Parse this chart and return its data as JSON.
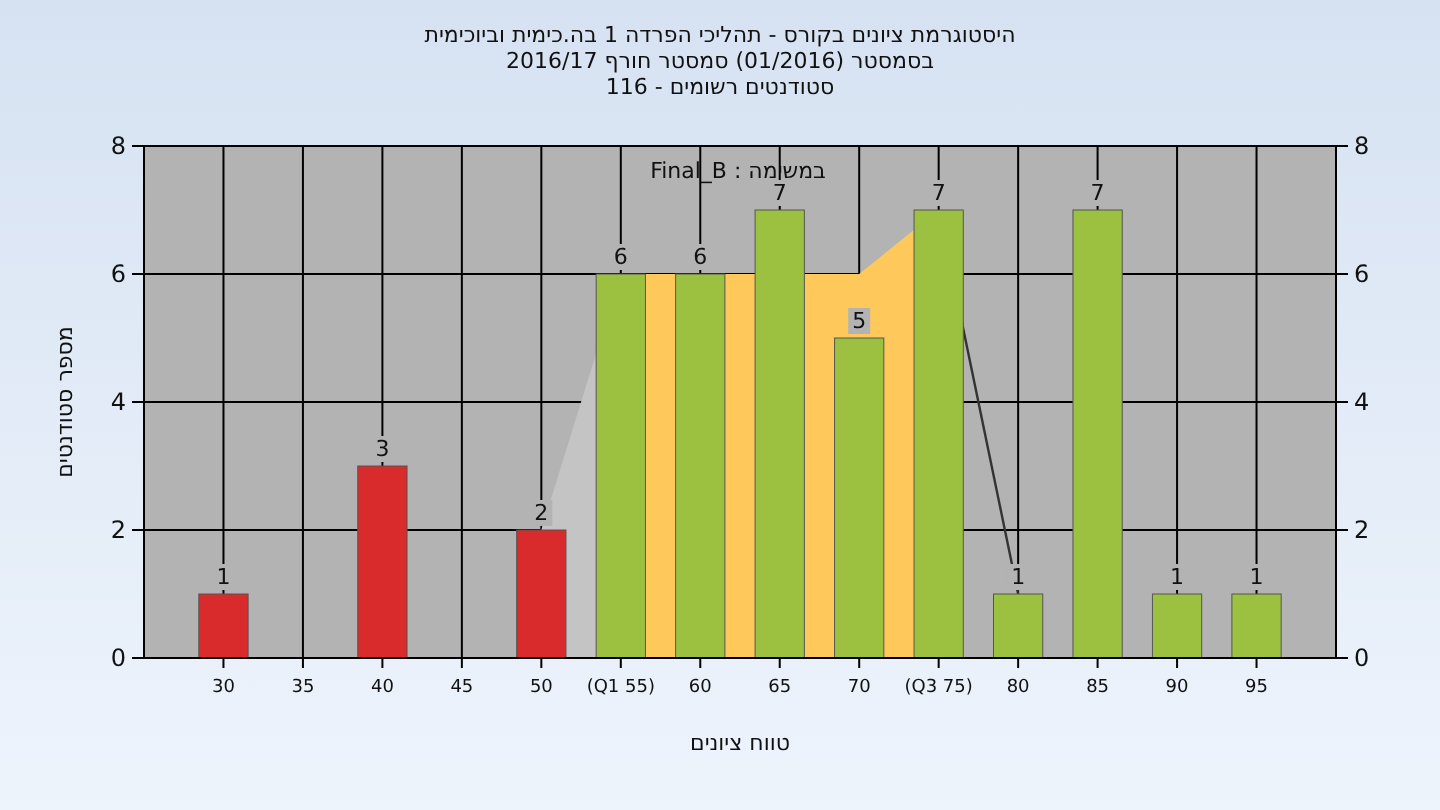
{
  "chart_data": {
    "type": "bar",
    "title": "היסטוגרמת ציונים בקורס - תהליכי הפרדה 1 בה.כימית וביוכימית",
    "subtitle": "בסמסטר  (01/2016)  סמסטר חורף 2016/17\nסטודנטים רשומים - 116",
    "xlabel": "טווח ציונים",
    "ylabel": "מספר סטודנטים",
    "annotations": [
      "במשימה : Final_B"
    ],
    "xlim": [
      25,
      100
    ],
    "xticks": [
      30,
      35,
      40,
      45,
      50,
      {
        "value": 55,
        "label": "(Q1 55)"
      },
      60,
      65,
      70,
      {
        "value": 75,
        "label": "(Q3 75)"
      },
      80,
      85,
      90,
      95
    ],
    "ylim": [
      0,
      8
    ],
    "yticks": [
      0,
      2,
      4,
      6,
      8
    ],
    "y2lim": [
      0,
      8
    ],
    "y2ticks": [
      0,
      2,
      4,
      6,
      8
    ],
    "grid": true,
    "series": [
      {
        "type": "area",
        "x": [
          50,
          55
        ],
        "values": [
          2,
          6
        ],
        "color": "#c4c4c4"
      },
      {
        "type": "area",
        "x": [
          55,
          70,
          75
        ],
        "values": [
          6,
          6,
          7
        ],
        "color": "#ffc85a"
      },
      {
        "type": "line",
        "x": [
          75,
          80
        ],
        "values": [
          7,
          1
        ],
        "color": "#333333"
      },
      {
        "type": "bar",
        "x": [
          30,
          40,
          50,
          55,
          60,
          65,
          70,
          75,
          80,
          85,
          90,
          95
        ],
        "values": [
          1,
          3,
          2,
          6,
          6,
          7,
          5,
          7,
          1,
          7,
          1,
          1
        ],
        "value_labels": [
          "1",
          "3",
          "2",
          "6",
          "6",
          "7",
          "5",
          "7",
          "1",
          "7",
          "1",
          "1"
        ],
        "colors": [
          "#d92b2b",
          "#d92b2b",
          "#d92b2b",
          "#9cc040",
          "#9cc040",
          "#9cc040",
          "#9cc040",
          "#9cc040",
          "#9cc040",
          "#9cc040",
          "#9cc040",
          "#9cc040"
        ]
      }
    ]
  }
}
